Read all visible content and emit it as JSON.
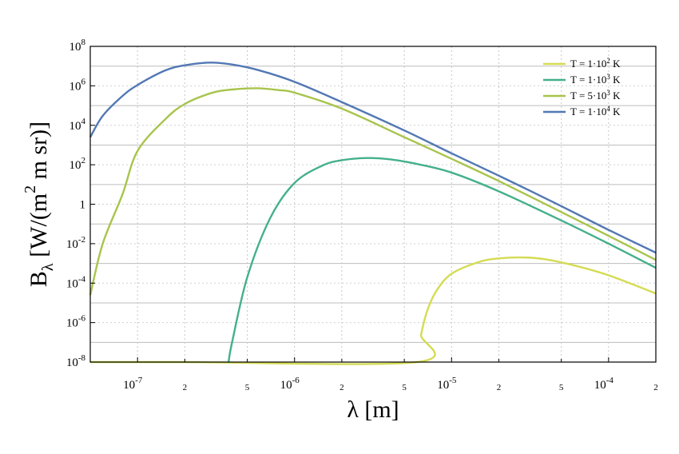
{
  "chart_data": {
    "type": "line",
    "title": "",
    "xlabel": "λ [m]",
    "ylabel_main": "B",
    "ylabel_sub": "λ",
    "ylabel_rest": "[W/(m",
    "ylabel_sup": "2",
    "ylabel_end": "m sr)]",
    "xscale": "log",
    "yscale": "log",
    "xlim": [
      5e-08,
      0.0002
    ],
    "ylim": [
      1e-08,
      100000000.0
    ],
    "grid": true,
    "legend_position": "top-right",
    "x_major_ticks": [
      {
        "value": 1e-07,
        "base": "10",
        "exp": "-7"
      },
      {
        "value": 1e-06,
        "base": "10",
        "exp": "-6"
      },
      {
        "value": 1e-05,
        "base": "10",
        "exp": "-5"
      },
      {
        "value": 0.0001,
        "base": "10",
        "exp": "-4"
      }
    ],
    "x_minor_ticks": [
      {
        "value": 2e-07,
        "label": "2"
      },
      {
        "value": 5e-07,
        "label": "5"
      },
      {
        "value": 2e-06,
        "label": "2"
      },
      {
        "value": 5e-06,
        "label": "5"
      },
      {
        "value": 2e-05,
        "label": "2"
      },
      {
        "value": 5e-05,
        "label": "5"
      },
      {
        "value": 0.0002,
        "label": "2"
      }
    ],
    "y_ticks": [
      {
        "value": 100000000.0,
        "base": "10",
        "exp": "8"
      },
      {
        "value": 1000000.0,
        "base": "10",
        "exp": "6"
      },
      {
        "value": 10000.0,
        "base": "10",
        "exp": "4"
      },
      {
        "value": 100.0,
        "base": "10",
        "exp": "2"
      },
      {
        "value": 1,
        "base": "1",
        "exp": ""
      },
      {
        "value": 0.01,
        "base": "10",
        "exp": "-2"
      },
      {
        "value": 0.0001,
        "base": "10",
        "exp": "-4"
      },
      {
        "value": 1e-06,
        "base": "10",
        "exp": "-6"
      },
      {
        "value": 1e-08,
        "base": "10",
        "exp": "-8"
      }
    ],
    "series": [
      {
        "name_prefix": "T = 1·10",
        "name_exp": "2",
        "name_suffix": " K",
        "color": "#d4dc54",
        "points": [
          [
            5e-08,
            1e-08
          ],
          [
            2e-07,
            1e-08
          ],
          [
            6e-06,
            1e-08
          ],
          [
            6.4e-06,
            2.5e-07
          ],
          [
            7e-06,
            4e-06
          ],
          [
            8e-06,
            4e-05
          ],
          [
            1e-05,
            0.0003
          ],
          [
            1.5e-05,
            0.0012
          ],
          [
            2e-05,
            0.0018
          ],
          [
            2.9e-05,
            0.002
          ],
          [
            4e-05,
            0.0016
          ],
          [
            6e-05,
            0.0008
          ],
          [
            0.0001,
            0.00025
          ],
          [
            0.0002,
            3e-05
          ]
        ]
      },
      {
        "name_prefix": "T = 1·10",
        "name_exp": "3",
        "name_suffix": " K",
        "color": "#44b08c",
        "points": [
          [
            3.8e-07,
            1e-08
          ],
          [
            4e-07,
            1e-07
          ],
          [
            5e-07,
            0.0002
          ],
          [
            7e-07,
            0.2
          ],
          [
            1e-06,
            12
          ],
          [
            1.5e-06,
            90
          ],
          [
            2e-06,
            170
          ],
          [
            2.9e-06,
            220
          ],
          [
            4e-06,
            190
          ],
          [
            6e-06,
            110
          ],
          [
            1e-05,
            40
          ],
          [
            2e-05,
            4.5
          ],
          [
            5e-05,
            0.15
          ],
          [
            0.0001,
            0.01
          ],
          [
            0.0002,
            0.0006
          ]
        ]
      },
      {
        "name_prefix": "T = 5·10",
        "name_exp": "3",
        "name_suffix": " K",
        "color": "#a8c44c",
        "points": [
          [
            5e-08,
            2.5e-05
          ],
          [
            6e-08,
            0.01
          ],
          [
            8e-08,
            3
          ],
          [
            1e-07,
            500
          ],
          [
            1.5e-07,
            20000.0
          ],
          [
            2e-07,
            120000.0
          ],
          [
            3e-07,
            450000.0
          ],
          [
            4e-07,
            650000.0
          ],
          [
            5.8e-07,
            750000.0
          ],
          [
            8e-07,
            600000.0
          ],
          [
            1e-06,
            450000.0
          ],
          [
            2e-06,
            70000.0
          ],
          [
            5e-06,
            2500
          ],
          [
            1e-05,
            200
          ],
          [
            2e-05,
            15
          ],
          [
            5e-05,
            0.4
          ],
          [
            0.0001,
            0.025
          ],
          [
            0.0002,
            0.0015
          ]
        ]
      },
      {
        "name_prefix": "T = 1·10",
        "name_exp": "4",
        "name_suffix": " K",
        "color": "#5278b4",
        "points": [
          [
            5e-08,
            2500
          ],
          [
            6e-08,
            30000.0
          ],
          [
            8e-08,
            300000.0
          ],
          [
            1e-07,
            1100000.0
          ],
          [
            1.5e-07,
            6000000.0
          ],
          [
            2e-07,
            11000000.0
          ],
          [
            2.9e-07,
            15000000.0
          ],
          [
            4e-07,
            12000000.0
          ],
          [
            6e-07,
            6000000.0
          ],
          [
            1e-06,
            1600000.0
          ],
          [
            2e-06,
            150000.0
          ],
          [
            5e-06,
            5500
          ],
          [
            1e-05,
            380
          ],
          [
            2e-05,
            28
          ],
          [
            5e-05,
            0.8
          ],
          [
            0.0001,
            0.05
          ],
          [
            0.0002,
            0.0035
          ]
        ]
      }
    ]
  }
}
